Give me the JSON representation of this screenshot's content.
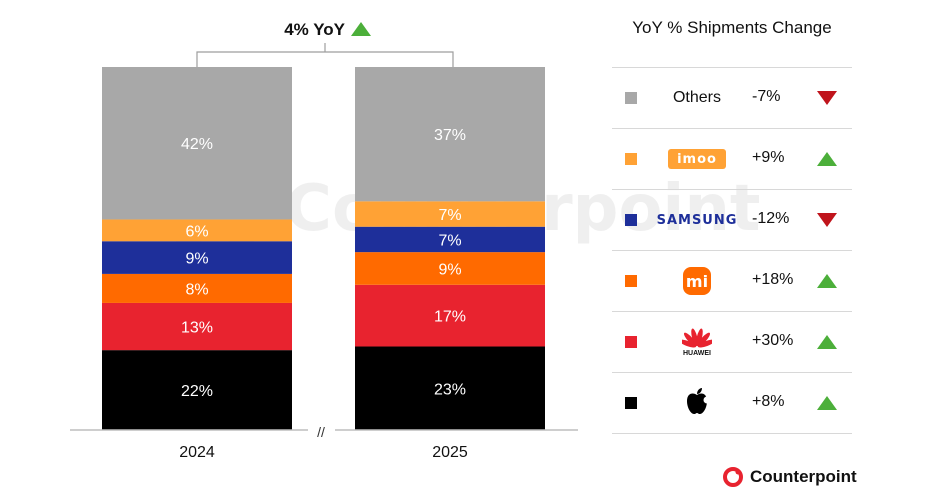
{
  "colors": {
    "others": "#a8a8a8",
    "imoo": "#ffa235",
    "samsung": "#1e2f9a",
    "xiaomi": "#ff6a00",
    "huawei": "#e8232f",
    "apple": "#000000",
    "up": "#4caf3a",
    "down": "#c0141c",
    "brand": "#e8232f"
  },
  "header": {
    "yoy_label": "4% YoY"
  },
  "axis_break": "//",
  "chart_data": {
    "type": "bar",
    "stacked": true,
    "normalized": true,
    "categories": [
      "2024",
      "2025"
    ],
    "series": [
      {
        "name": "Apple",
        "color": "#000000",
        "values": [
          22,
          23
        ]
      },
      {
        "name": "HUAWEI",
        "color": "#e8232f",
        "values": [
          13,
          17
        ]
      },
      {
        "name": "Xiaomi",
        "color": "#ff6a00",
        "values": [
          8,
          9
        ]
      },
      {
        "name": "SAMSUNG",
        "color": "#1e2f9a",
        "values": [
          9,
          7
        ]
      },
      {
        "name": "imoo",
        "color": "#ffa235",
        "values": [
          6,
          7
        ]
      },
      {
        "name": "Others",
        "color": "#a8a8a8",
        "values": [
          42,
          37
        ]
      }
    ],
    "value_suffix": "%",
    "grid": false,
    "legend_position": "right"
  },
  "legend": {
    "title": "YoY % Shipments Change",
    "rows": [
      {
        "key": "others",
        "name": "Others",
        "logo": "text",
        "change": "-7%",
        "direction": "down"
      },
      {
        "key": "imoo",
        "name": "imoo",
        "logo": "imoo-logo",
        "change": "+9%",
        "direction": "up"
      },
      {
        "key": "samsung",
        "name": "SAMSUNG",
        "logo": "samsung-logo",
        "change": "-12%",
        "direction": "down"
      },
      {
        "key": "xiaomi",
        "name": "mi",
        "logo": "xiaomi-logo",
        "change": "+18%",
        "direction": "up"
      },
      {
        "key": "huawei",
        "name": "HUAWEI",
        "logo": "huawei-logo",
        "change": "+30%",
        "direction": "up"
      },
      {
        "key": "apple",
        "name": "",
        "logo": "apple-logo",
        "change": "+8%",
        "direction": "up"
      }
    ]
  },
  "brand": {
    "name": "Counterpoint",
    "watermark": "Counterpoint"
  }
}
